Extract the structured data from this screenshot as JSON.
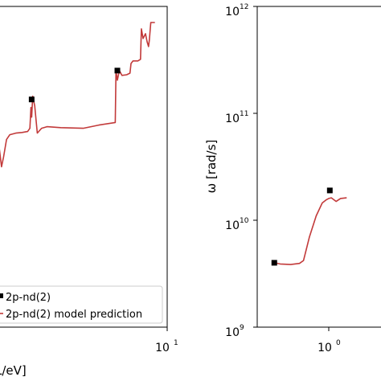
{
  "chart_data": [
    {
      "type": "line",
      "title": "",
      "xlabel": "L/eV]",
      "ylabel": "",
      "xscale": "log",
      "xlim": [
        0.4,
        10
      ],
      "ylim": [
        0,
        1
      ],
      "x_ticks": [
        {
          "base": "10",
          "exp": "1",
          "value": 10
        }
      ],
      "legend": {
        "placement": "lower-right",
        "entries": [
          {
            "label": "2p-nd(2)",
            "marker": "square",
            "color": "#000000"
          },
          {
            "label": "2p-nd(2) model prediction",
            "line": true,
            "color": "#c23a3a"
          }
        ]
      },
      "series": [
        {
          "name": "2p-nd(2) model prediction",
          "color": "#c23a3a",
          "points": [
            [
              0.4,
              0.56
            ],
            [
              0.418,
              0.5
            ],
            [
              0.435,
              0.53
            ],
            [
              0.46,
              0.585
            ],
            [
              0.49,
              0.6
            ],
            [
              0.55,
              0.605
            ],
            [
              0.62,
              0.607
            ],
            [
              0.69,
              0.61
            ],
            [
              0.72,
              0.62
            ],
            [
              0.735,
              0.685
            ],
            [
              0.745,
              0.655
            ],
            [
              0.76,
              0.72
            ],
            [
              0.79,
              0.69
            ],
            [
              0.83,
              0.605
            ],
            [
              0.9,
              0.62
            ],
            [
              1.0,
              0.625
            ],
            [
              1.3,
              0.622
            ],
            [
              2.0,
              0.62
            ],
            [
              2.7,
              0.63
            ],
            [
              3.7,
              0.638
            ],
            [
              3.75,
              0.8
            ],
            [
              3.85,
              0.77
            ],
            [
              4.0,
              0.8
            ],
            [
              4.2,
              0.785
            ],
            [
              4.6,
              0.787
            ],
            [
              4.9,
              0.792
            ],
            [
              5.0,
              0.822
            ],
            [
              5.2,
              0.83
            ],
            [
              5.7,
              0.83
            ],
            [
              6.0,
              0.835
            ],
            [
              6.1,
              0.93
            ],
            [
              6.3,
              0.9
            ],
            [
              6.6,
              0.915
            ],
            [
              6.8,
              0.89
            ],
            [
              7.0,
              0.875
            ],
            [
              7.1,
              0.895
            ],
            [
              7.3,
              0.95
            ],
            [
              7.9,
              0.95
            ]
          ]
        },
        {
          "name": "2p-nd(2)",
          "marker": "square",
          "color": "#000000",
          "points": [
            [
              0.745,
              0.71
            ],
            [
              3.85,
              0.8
            ]
          ]
        }
      ]
    },
    {
      "type": "line",
      "title": "",
      "xlabel": "",
      "ylabel": "ω [rad/s]",
      "xscale": "log",
      "yscale": "log",
      "xlim": [
        0.38,
        3
      ],
      "ylim": [
        1000000000.0,
        1000000000000.0
      ],
      "x_ticks": [
        {
          "base": "10",
          "exp": "0",
          "value": 1
        }
      ],
      "y_ticks": [
        {
          "base": "10",
          "exp": "9",
          "value": 1000000000.0
        },
        {
          "base": "10",
          "exp": "10",
          "value": 10000000000.0
        },
        {
          "base": "10",
          "exp": "11",
          "value": 100000000000.0
        },
        {
          "base": "10",
          "exp": "12",
          "value": 1000000000000.0
        }
      ],
      "series": [
        {
          "name": "",
          "color": "#c23a3a",
          "points": [
            [
              0.5,
              4000000000.0
            ],
            [
              0.55,
              3900000000.0
            ],
            [
              0.65,
              3850000000.0
            ],
            [
              0.75,
              3950000000.0
            ],
            [
              0.8,
              4200000000.0
            ],
            [
              0.88,
              7000000000.0
            ],
            [
              0.98,
              11000000000.0
            ],
            [
              1.08,
              14500000000.0
            ],
            [
              1.15,
              15500000000.0
            ],
            [
              1.2,
              16000000000.0
            ],
            [
              1.25,
              16200000000.0
            ],
            [
              1.35,
              15000000000.0
            ],
            [
              1.45,
              16000000000.0
            ],
            [
              1.6,
              16200000000.0
            ]
          ]
        },
        {
          "name": "",
          "marker": "square",
          "color": "#000000",
          "points": [
            [
              0.5,
              4000000000.0
            ],
            [
              1.22,
              19000000000.0
            ]
          ]
        }
      ]
    }
  ]
}
